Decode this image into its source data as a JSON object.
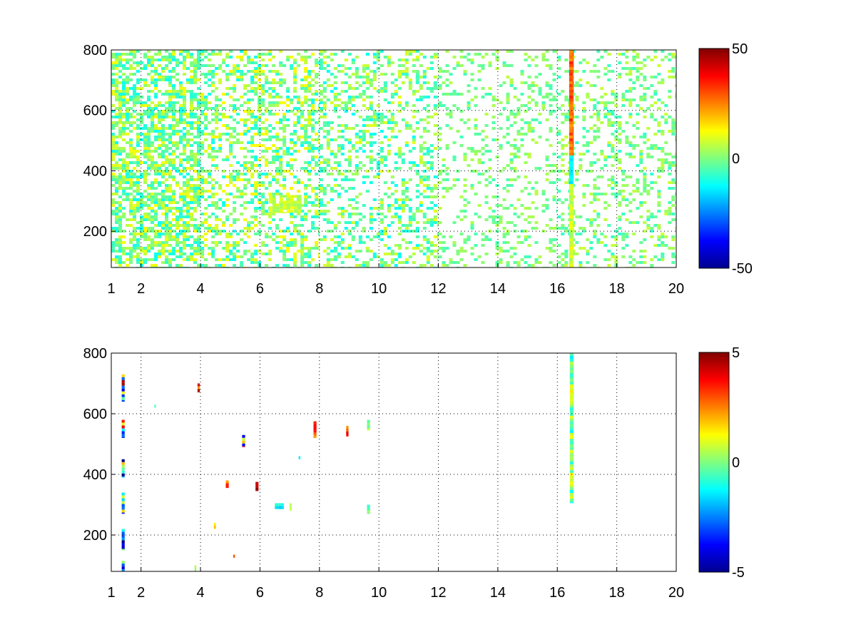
{
  "chart_data": [
    {
      "type": "heatmap",
      "title": "",
      "xlabel": "",
      "ylabel": "",
      "xlim": [
        1,
        20
      ],
      "ylim": [
        80,
        800
      ],
      "xticks": [
        1,
        2,
        4,
        6,
        8,
        10,
        12,
        14,
        16,
        18,
        20
      ],
      "yticks": [
        200,
        400,
        600,
        800
      ],
      "grid": true,
      "colormap": "jet",
      "clim": [
        -50,
        50
      ],
      "colorbar_ticks": [
        50,
        0,
        -50
      ],
      "colorbar_placement": "right",
      "features": [
        {
          "x_range": [
            1.0,
            4.0
          ],
          "y_range": [
            80,
            800
          ],
          "coverage": 0.62,
          "value_range": [
            -12,
            12
          ],
          "note": "dense thin vertical streaks"
        },
        {
          "x_range": [
            4.0,
            8.0
          ],
          "y_range": [
            80,
            800
          ],
          "coverage": 0.42,
          "value_range": [
            -12,
            14
          ]
        },
        {
          "x_range": [
            6.3,
            7.4
          ],
          "y_range": [
            260,
            320
          ],
          "coverage": 0.85,
          "value_range": [
            2,
            12
          ]
        },
        {
          "x_range": [
            8.0,
            12.0
          ],
          "y_range": [
            80,
            800
          ],
          "coverage": 0.33,
          "value_range": [
            -12,
            10
          ]
        },
        {
          "x_range": [
            12.0,
            16.0
          ],
          "y_range": [
            80,
            800
          ],
          "coverage": 0.2,
          "value_range": [
            -6,
            6
          ]
        },
        {
          "x_range": [
            16.0,
            20.0
          ],
          "y_range": [
            80,
            800
          ],
          "coverage": 0.26,
          "value_range": [
            -8,
            8
          ]
        },
        {
          "x_range": [
            16.4,
            16.55
          ],
          "y_range": [
            80,
            800
          ],
          "coverage": 1.0,
          "value_range": [
            -20,
            35
          ],
          "note": "strong vertical band, orange/red above 460, cyan 360-460"
        }
      ]
    },
    {
      "type": "heatmap",
      "title": "",
      "xlabel": "",
      "ylabel": "",
      "xlim": [
        1,
        20
      ],
      "ylim": [
        80,
        800
      ],
      "xticks": [
        1,
        2,
        4,
        6,
        8,
        10,
        12,
        14,
        16,
        18,
        20
      ],
      "yticks": [
        200,
        400,
        600,
        800
      ],
      "grid": true,
      "colormap": "jet",
      "clim": [
        -5,
        5
      ],
      "colorbar_ticks": [
        5,
        0,
        -5
      ],
      "colorbar_placement": "right",
      "features": [
        {
          "x_range": [
            16.42,
            16.55
          ],
          "y_range": [
            305,
            800
          ],
          "value_range": [
            -1.5,
            1.5
          ],
          "note": "vertical band"
        },
        {
          "x_range": [
            1.35,
            1.45
          ],
          "y_range": [
            640,
            730
          ],
          "value_range": [
            -5,
            5
          ]
        },
        {
          "x_range": [
            1.35,
            1.45
          ],
          "y_range": [
            520,
            580
          ],
          "value_range": [
            -4,
            4
          ]
        },
        {
          "x_range": [
            1.35,
            1.45
          ],
          "y_range": [
            390,
            450
          ],
          "value_range": [
            -5,
            3
          ]
        },
        {
          "x_range": [
            1.35,
            1.45
          ],
          "y_range": [
            270,
            340
          ],
          "value_range": [
            -5,
            2
          ]
        },
        {
          "x_range": [
            1.35,
            1.45
          ],
          "y_range": [
            150,
            220
          ],
          "value_range": [
            -5,
            0
          ]
        },
        {
          "x_range": [
            1.35,
            1.45
          ],
          "y_range": [
            80,
            115
          ],
          "value_range": [
            -5,
            3
          ]
        },
        {
          "x_range": [
            3.9,
            3.98
          ],
          "y_range": [
            670,
            700
          ],
          "value_range": [
            2,
            5
          ]
        },
        {
          "x_range": [
            5.4,
            5.5
          ],
          "y_range": [
            490,
            530
          ],
          "value_range": [
            -4,
            4
          ]
        },
        {
          "x_range": [
            7.8,
            7.9
          ],
          "y_range": [
            520,
            575
          ],
          "value_range": [
            2,
            4
          ]
        },
        {
          "x_range": [
            8.9,
            8.98
          ],
          "y_range": [
            525,
            560
          ],
          "value_range": [
            2,
            4
          ]
        },
        {
          "x_range": [
            9.6,
            9.7
          ],
          "y_range": [
            545,
            580
          ],
          "value_range": [
            -1,
            1
          ]
        },
        {
          "x_range": [
            4.85,
            4.95
          ],
          "y_range": [
            355,
            380
          ],
          "value_range": [
            2,
            4
          ]
        },
        {
          "x_range": [
            5.85,
            5.95
          ],
          "y_range": [
            345,
            375
          ],
          "value_range": [
            4,
            5
          ]
        },
        {
          "x_range": [
            6.5,
            6.8
          ],
          "y_range": [
            285,
            305
          ],
          "value_range": [
            -2,
            0
          ]
        },
        {
          "x_range": [
            7.0,
            7.06
          ],
          "y_range": [
            280,
            305
          ],
          "value_range": [
            0,
            1
          ]
        },
        {
          "x_range": [
            9.6,
            9.7
          ],
          "y_range": [
            270,
            300
          ],
          "value_range": [
            -1,
            1
          ]
        },
        {
          "x_range": [
            7.3,
            7.36
          ],
          "y_range": [
            450,
            460
          ],
          "value_range": [
            -2,
            -1
          ]
        },
        {
          "x_range": [
            4.45,
            4.52
          ],
          "y_range": [
            220,
            240
          ],
          "value_range": [
            1,
            2
          ]
        },
        {
          "x_range": [
            5.1,
            5.16
          ],
          "y_range": [
            125,
            135
          ],
          "value_range": [
            2,
            3
          ]
        },
        {
          "x_range": [
            3.8,
            3.86
          ],
          "y_range": [
            80,
            100
          ],
          "value_range": [
            0,
            1
          ]
        },
        {
          "x_range": [
            2.45,
            2.5
          ],
          "y_range": [
            620,
            630
          ],
          "value_range": [
            -1,
            0
          ]
        }
      ]
    }
  ]
}
